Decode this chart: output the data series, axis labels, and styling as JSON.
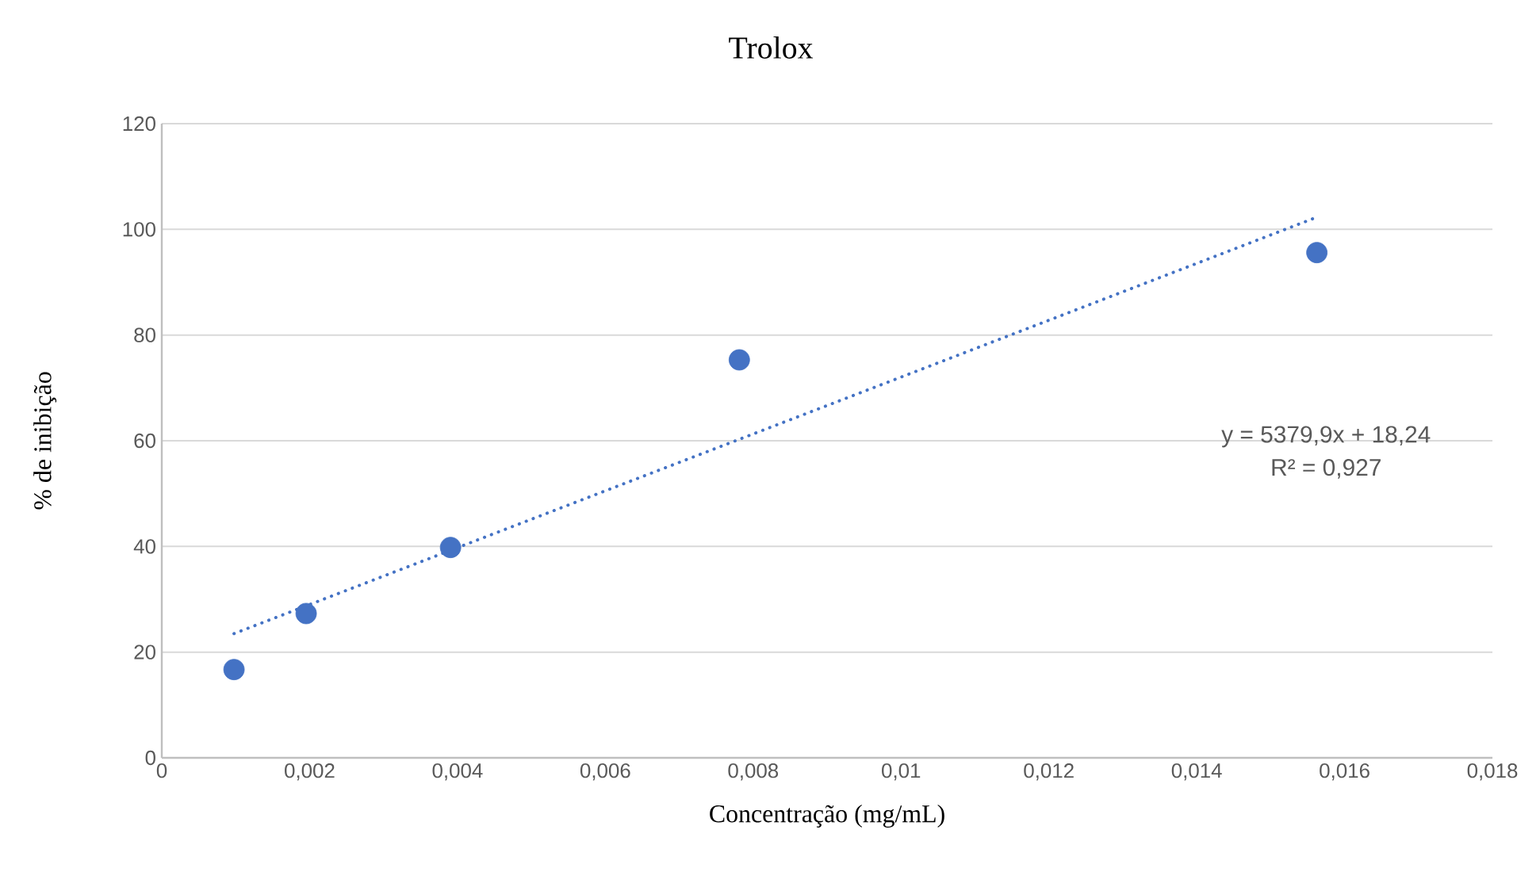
{
  "chart_data": {
    "type": "scatter",
    "title": "Trolox",
    "xlabel": "Concentração (mg/mL)",
    "ylabel": "% de inibição",
    "xlim": [
      0,
      0.018
    ],
    "ylim": [
      0,
      120
    ],
    "xticks": [
      {
        "value": 0,
        "label": "0"
      },
      {
        "value": 0.002,
        "label": "0,002"
      },
      {
        "value": 0.004,
        "label": "0,004"
      },
      {
        "value": 0.006,
        "label": "0,006"
      },
      {
        "value": 0.008,
        "label": "0,008"
      },
      {
        "value": 0.01,
        "label": "0,01"
      },
      {
        "value": 0.012,
        "label": "0,012"
      },
      {
        "value": 0.014,
        "label": "0,014"
      },
      {
        "value": 0.016,
        "label": "0,016"
      },
      {
        "value": 0.018,
        "label": "0,018"
      }
    ],
    "yticks": [
      0,
      20,
      40,
      60,
      80,
      100,
      120
    ],
    "grid": "y",
    "legend": false,
    "series": [
      {
        "marker": "circle",
        "color": "#4472c4",
        "x": [
          0.000977,
          0.001953,
          0.003906,
          0.0078125,
          0.015625
        ],
        "values": [
          16.7,
          27.3,
          39.8,
          75.3,
          95.6
        ]
      },
      {
        "type": "line",
        "line_style": "dotted",
        "marker": "none",
        "color": "#4472c4",
        "x": [
          0.000977,
          0.015625
        ],
        "values": [
          23.5,
          102.3
        ]
      }
    ],
    "annotations": [
      "y = 5379,9x + 18,24",
      "R² = 0,927"
    ]
  }
}
